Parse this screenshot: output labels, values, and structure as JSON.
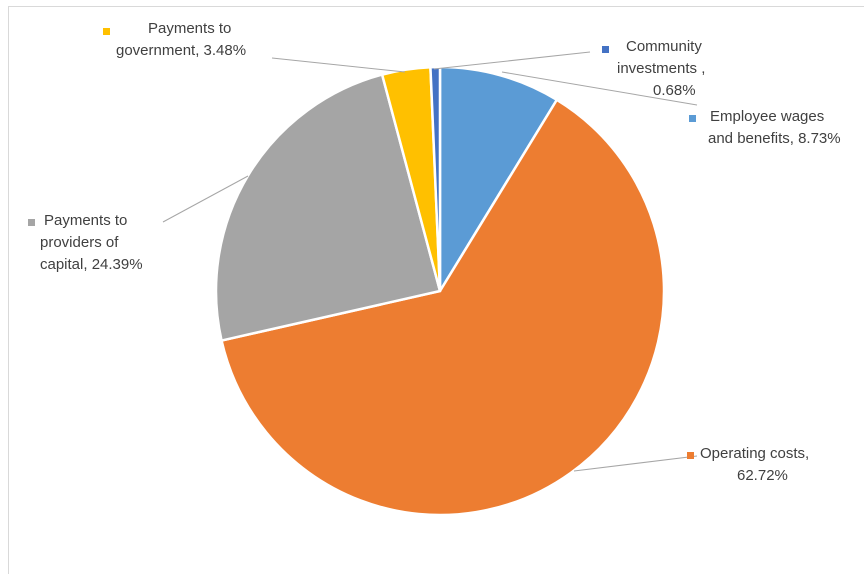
{
  "chart_data": {
    "type": "pie",
    "slices": [
      {
        "label": "Employee wages and benefits",
        "value": 8.73,
        "color": "#5b9bd5",
        "text_lines": [
          "Employee wages",
          "and benefits, 8.73%"
        ]
      },
      {
        "label": "Operating costs",
        "value": 62.72,
        "color": "#ed7d31",
        "text_lines": [
          "Operating costs,",
          "62.72%"
        ]
      },
      {
        "label": "Payments to providers of capital",
        "value": 24.39,
        "color": "#a5a5a5",
        "text_lines": [
          "Payments to",
          "providers of",
          "capital, 24.39%"
        ]
      },
      {
        "label": "Payments to government",
        "value": 3.48,
        "color": "#ffc000",
        "text_lines": [
          "Payments to",
          "government, 3.48%"
        ]
      },
      {
        "label": "Community investments",
        "value": 0.68,
        "color": "#4472c4",
        "text_lines": [
          "Community",
          "investments ,",
          "0.68%"
        ]
      }
    ],
    "legend": "none",
    "data_labels": "outside with leader lines"
  }
}
